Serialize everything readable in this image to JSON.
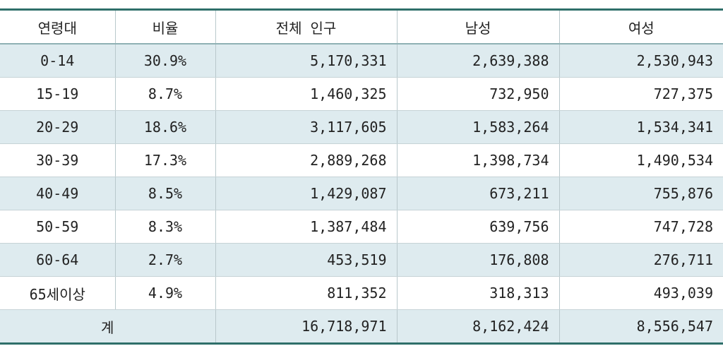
{
  "table": {
    "headers": [
      "연령대",
      "비율",
      "전체 인구",
      "남성",
      "여성"
    ],
    "rows": [
      {
        "age": "0-14",
        "ratio": "30.9%",
        "total": "5,170,331",
        "male": "2,639,388",
        "female": "2,530,943"
      },
      {
        "age": "15-19",
        "ratio": "8.7%",
        "total": "1,460,325",
        "male": "732,950",
        "female": "727,375"
      },
      {
        "age": "20-29",
        "ratio": "18.6%",
        "total": "3,117,605",
        "male": "1,583,264",
        "female": "1,534,341"
      },
      {
        "age": "30-39",
        "ratio": "17.3%",
        "total": "2,889,268",
        "male": "1,398,734",
        "female": "1,490,534"
      },
      {
        "age": "40-49",
        "ratio": "8.5%",
        "total": "1,429,087",
        "male": "673,211",
        "female": "755,876"
      },
      {
        "age": "50-59",
        "ratio": "8.3%",
        "total": "1,387,484",
        "male": "639,756",
        "female": "747,728"
      },
      {
        "age": "60-64",
        "ratio": "2.7%",
        "total": "453,519",
        "male": "176,808",
        "female": "276,711"
      },
      {
        "age": "65세이상",
        "ratio": "4.9%",
        "total": "811,352",
        "male": "318,313",
        "female": "493,039"
      }
    ],
    "total_row": {
      "label": "계",
      "total": "16,718,971",
      "male": "8,162,424",
      "female": "8,556,547"
    }
  },
  "colors": {
    "border_accent": "#2f6f6a",
    "row_shade": "#deebef"
  }
}
